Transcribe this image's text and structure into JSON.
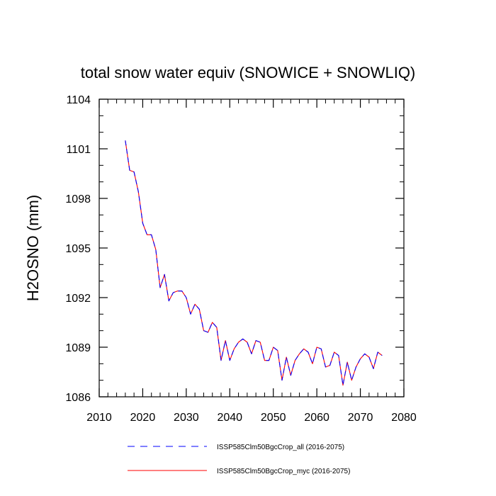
{
  "chart_data": {
    "type": "line",
    "title": "total snow water equiv (SNOWICE + SNOWLIQ)",
    "xlabel": "",
    "ylabel": "H2OSNO  (mm)",
    "xlim": [
      2010,
      2080
    ],
    "ylim": [
      1086,
      1104
    ],
    "xticks": [
      2010,
      2020,
      2030,
      2040,
      2050,
      2060,
      2070,
      2080
    ],
    "yticks": [
      1086,
      1089,
      1092,
      1095,
      1098,
      1101,
      1104
    ],
    "grid": false,
    "legend_position": "bottom",
    "x": [
      2016,
      2017,
      2018,
      2019,
      2020,
      2021,
      2022,
      2023,
      2024,
      2025,
      2026,
      2027,
      2028,
      2029,
      2030,
      2031,
      2032,
      2033,
      2034,
      2035,
      2036,
      2037,
      2038,
      2039,
      2040,
      2041,
      2042,
      2043,
      2044,
      2045,
      2046,
      2047,
      2048,
      2049,
      2050,
      2051,
      2052,
      2053,
      2054,
      2055,
      2056,
      2057,
      2058,
      2059,
      2060,
      2061,
      2062,
      2063,
      2064,
      2065,
      2066,
      2067,
      2068,
      2069,
      2070,
      2071,
      2072,
      2073,
      2074,
      2075
    ],
    "series": [
      {
        "name": "ISSP585Clm50BgcCrop_all (2016-2075)",
        "color": "#0000ff",
        "dash": "dashed",
        "values": [
          1101.5,
          1099.7,
          1099.6,
          1098.4,
          1096.5,
          1095.8,
          1095.8,
          1094.9,
          1092.6,
          1093.4,
          1091.8,
          1092.3,
          1092.4,
          1092.4,
          1092.0,
          1091.0,
          1091.6,
          1091.3,
          1090.0,
          1089.9,
          1090.5,
          1090.2,
          1088.2,
          1089.4,
          1088.2,
          1088.9,
          1089.3,
          1089.5,
          1089.3,
          1088.6,
          1089.4,
          1089.3,
          1088.2,
          1088.2,
          1089.0,
          1088.8,
          1087.0,
          1088.4,
          1087.3,
          1088.2,
          1088.6,
          1088.9,
          1088.7,
          1088.0,
          1089.0,
          1088.9,
          1087.8,
          1087.9,
          1088.7,
          1088.5,
          1086.7,
          1088.1,
          1087.0,
          1087.8,
          1088.3,
          1088.6,
          1088.4,
          1087.7,
          1088.7,
          1088.5
        ]
      },
      {
        "name": "ISSP585Clm50BgcCrop_myc (2016-2075)",
        "color": "#ff0000",
        "dash": "solid",
        "values": [
          1101.5,
          1099.7,
          1099.6,
          1098.4,
          1096.5,
          1095.8,
          1095.8,
          1094.9,
          1092.6,
          1093.4,
          1091.8,
          1092.3,
          1092.4,
          1092.4,
          1092.0,
          1091.0,
          1091.6,
          1091.3,
          1090.0,
          1089.9,
          1090.5,
          1090.2,
          1088.2,
          1089.4,
          1088.2,
          1088.9,
          1089.3,
          1089.5,
          1089.3,
          1088.6,
          1089.4,
          1089.3,
          1088.2,
          1088.2,
          1089.0,
          1088.8,
          1087.0,
          1088.4,
          1087.3,
          1088.2,
          1088.6,
          1088.9,
          1088.7,
          1088.0,
          1089.0,
          1088.9,
          1087.8,
          1087.9,
          1088.7,
          1088.5,
          1086.7,
          1088.1,
          1087.0,
          1087.8,
          1088.3,
          1088.6,
          1088.4,
          1087.7,
          1088.7,
          1088.5
        ]
      }
    ]
  }
}
